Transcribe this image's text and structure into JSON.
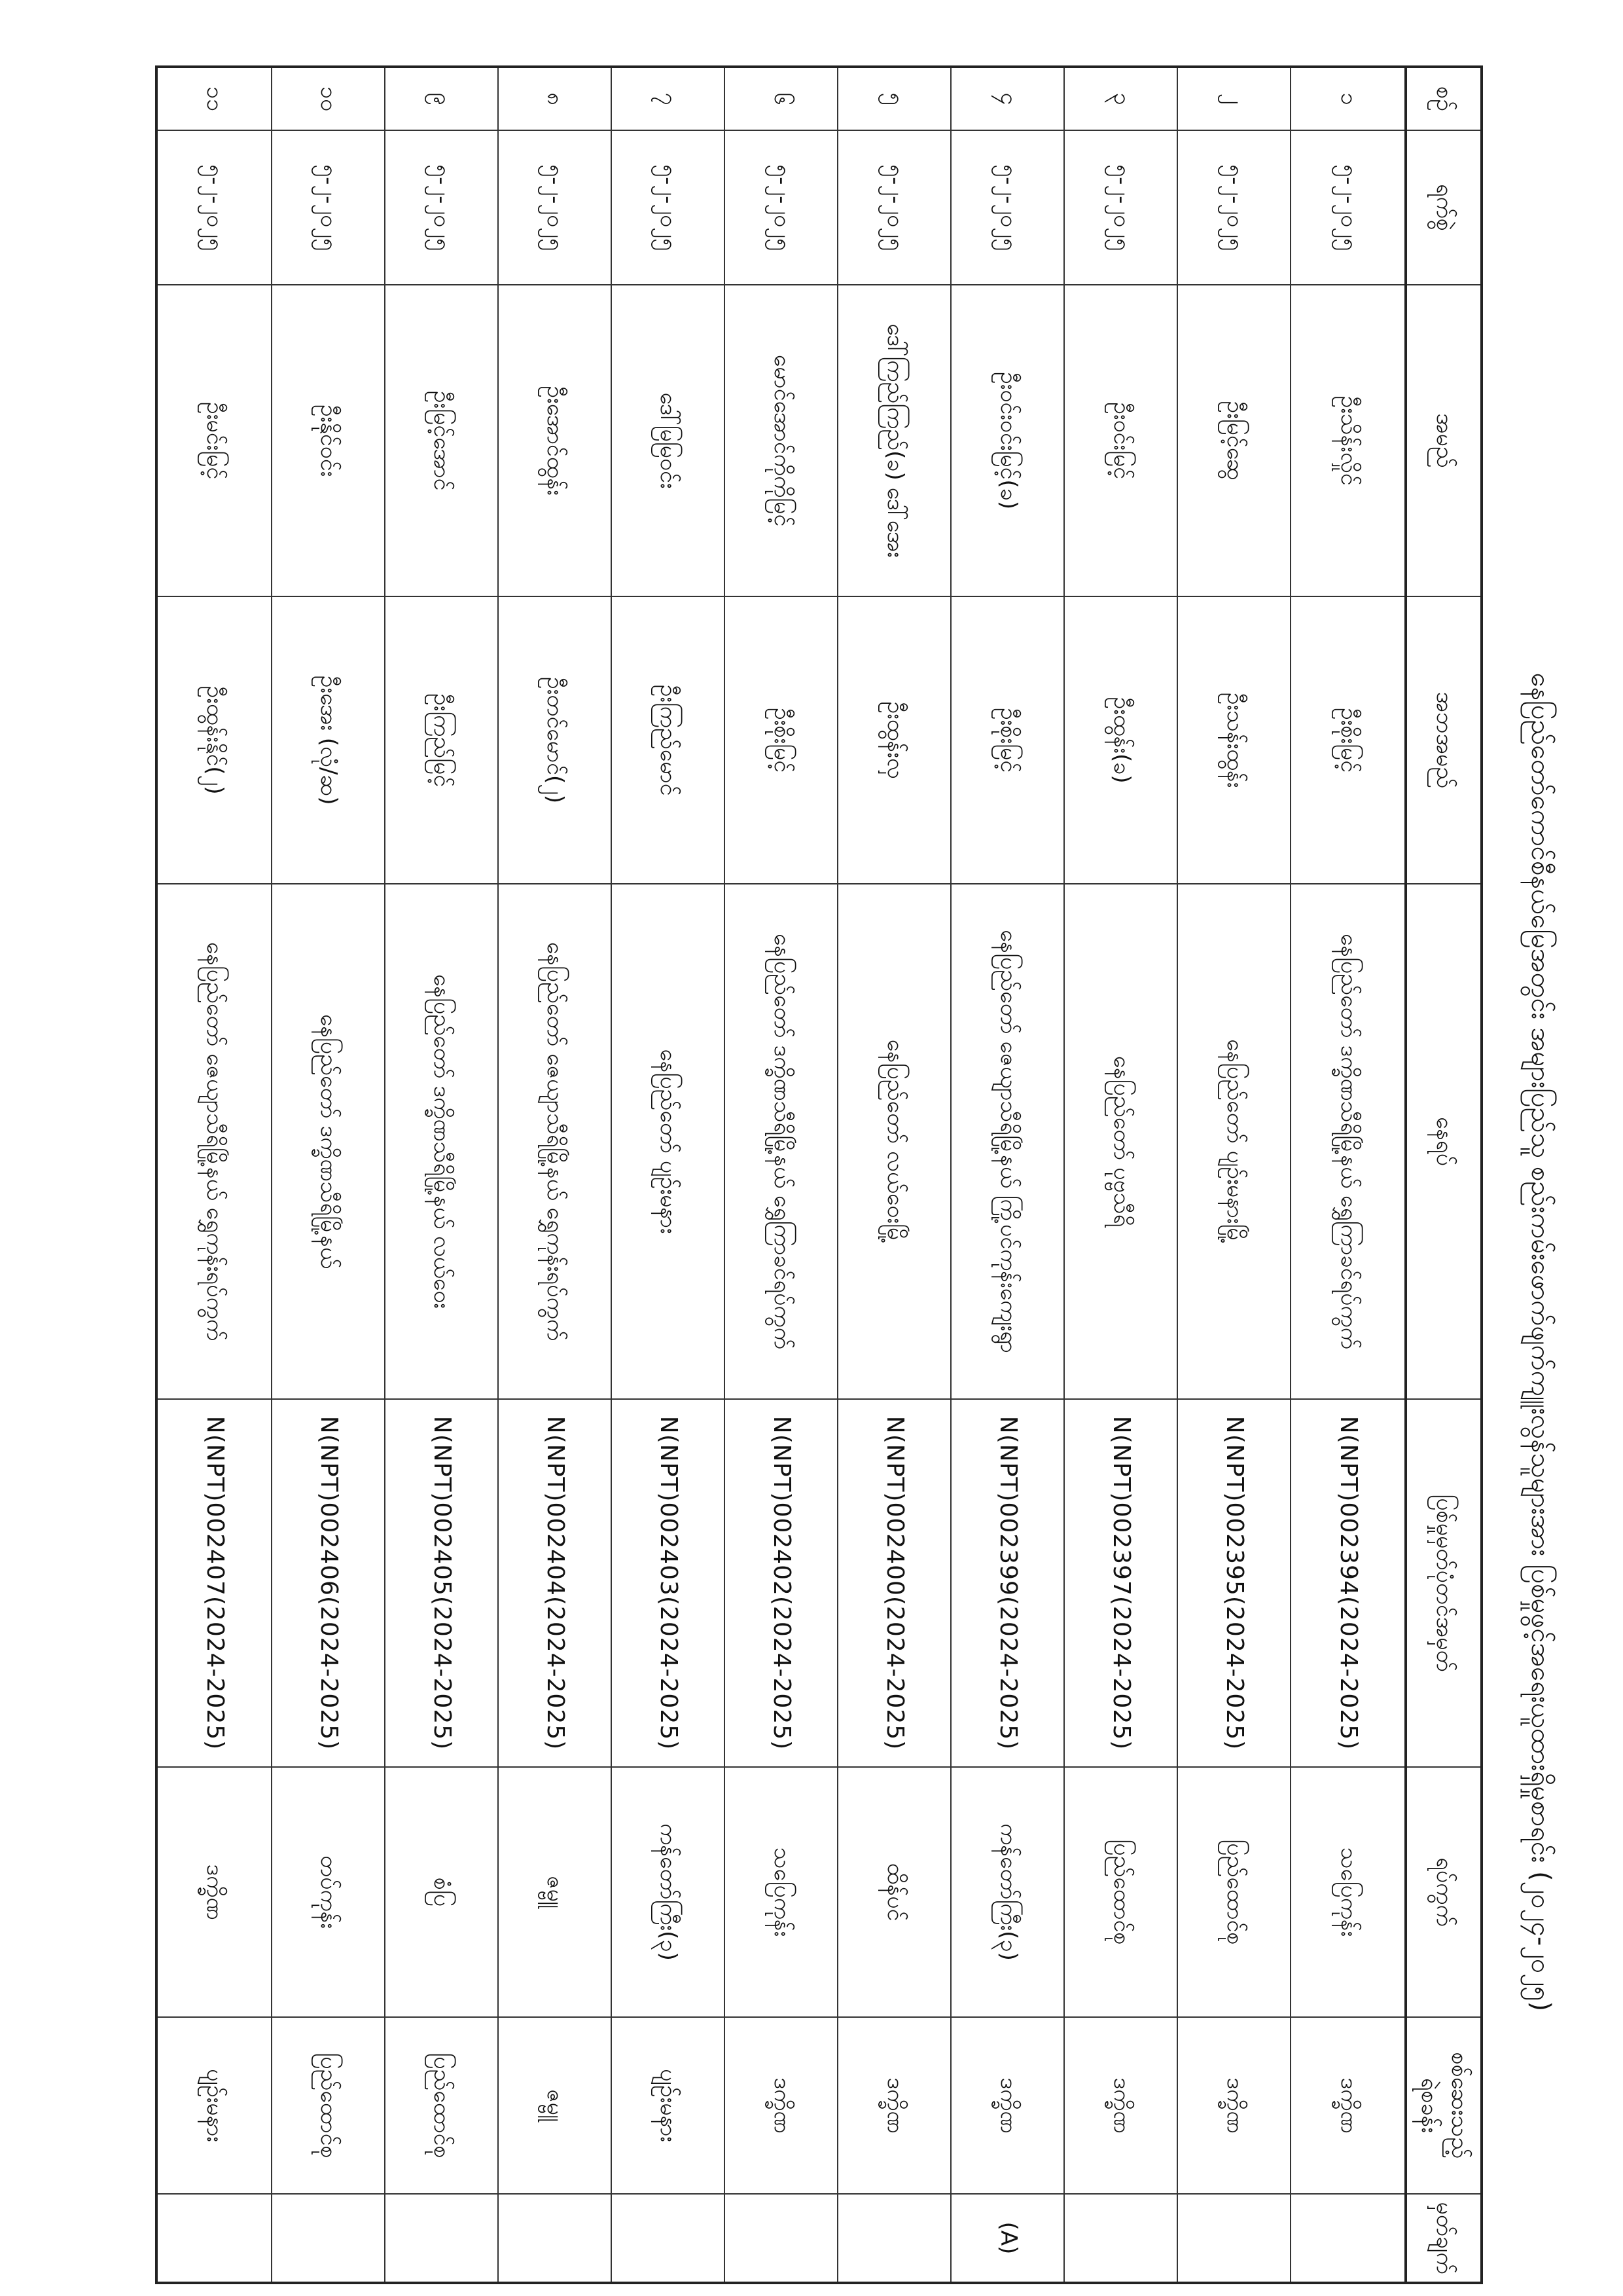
{
  "title": "နေပြည်တော်ကောင်စီနယ်မြေအတွင်း အများပြည်သူ စည်းကမ်းဖောက်ဖျက်ကျူးလွန်သူများအား ပြစ်မှုဖွင့်အရေးယူထားရှိမှုစာရင်း (၂၀၂၄-၂၀၂၅)",
  "headers": {
    "no": "စဉ်",
    "date": "ရက်စွဲ",
    "name": "အမည်",
    "father": "အဘအမည်",
    "address": "နေရပ်",
    "case_no": "ပြစ်မှုမှတ်ပုံတင်အမှတ်",
    "township": "ရပ်ကွက်",
    "station": "စစ်ဆေးသည့် ရဲစခန်း",
    "remark": "မှတ်ချက်"
  },
  "rows": [
    {
      "no": "၁",
      "date": "၅-၂-၂၀၂၅",
      "name": "ဦးသိန်းလှိုင်",
      "father": "ဦးစိုးမြင့်",
      "address": "နေပြည်တော် ဒက္ခိဏသီရိမြို့နယ် ရွှေကြာခင်ရပ်ကွက်",
      "case_no": "N(NPT)002394(2024-2025)",
      "township": "သပြေကုန်း",
      "station": "ဒက္ခိဏ",
      "remark": ""
    },
    {
      "no": "၂",
      "date": "၅-၂-၂၀၂၅",
      "name": "ဦးမြင့်ဆွေ",
      "father": "ဦးသန်းထွန်း",
      "address": "နေပြည်တော် ပျဉ်းမနားမြို့",
      "case_no": "N(NPT)002395(2024-2025)",
      "township": "ပြည်ထောင်စု",
      "station": "ဒက္ခိဏ",
      "remark": ""
    },
    {
      "no": "၃",
      "date": "၅-၂-၂၀၂၅",
      "name": "ဦးဝင်းမြင့်",
      "father": "ဦးထွန်း(ခ)",
      "address": "နေပြည်တော် ပုဗ္ဗသီရိ",
      "case_no": "N(NPT)002397(2024-2025)",
      "township": "ပြည်ထောင်စု",
      "station": "ဒက္ခိဏ",
      "remark": ""
    },
    {
      "no": "၄",
      "date": "၅-၂-၂၀၂၅",
      "name": "ဦးဝင်းဝင်းမြင့်(ခ)",
      "father": "ဦးစိုးမြင့်",
      "address": "နေပြည်တော် ဇေယျာသီရိမြို့နယ် ကြို့ပင်ကုန်းကျေးရွာ",
      "case_no": "N(NPT)002399(2024-2025)",
      "township": "ကန်တော်ကြီး(၃)",
      "station": "ဒက္ခိဏ",
      "remark": "(A)"
    },
    {
      "no": "၅",
      "date": "၅-၂-၂၀၂၅",
      "name": "ဒေါ်ကြည်ကြည်(ခ) ဒေါ်အေး",
      "father": "ဦးထွန်းလှ",
      "address": "နေပြည်တော် လယ်ဝေးမြို့",
      "case_no": "N(NPT)002400(2024-2025)",
      "township": "ထိန်ပင်",
      "station": "ဒက္ခိဏ",
      "remark": ""
    },
    {
      "no": "၆",
      "date": "၅-၂-၂၀၂၅",
      "name": "မောင်အောင်ကိုကိုမြင့်",
      "father": "ဦးစိုးမြင့်",
      "address": "နေပြည်တော် ဒက္ခိဏသီရိမြို့နယ် ရွှေကြာခင်ရပ်ကွက်",
      "case_no": "N(NPT)002402(2024-2025)",
      "township": "သပြေကုန်း",
      "station": "ဒက္ခိဏ",
      "remark": ""
    },
    {
      "no": "၇",
      "date": "၅-၂-၂၀၂၅",
      "name": "ဒေါ်မြမြဝင်း",
      "father": "ဦးကြည်မောင်",
      "address": "နေပြည်တော် ပျဉ်းမနား",
      "case_no": "N(NPT)002403(2024-2025)",
      "township": "ကန်တော်ကြီး(၃)",
      "station": "ပျဉ်းမနား",
      "remark": ""
    },
    {
      "no": "၈",
      "date": "၅-၂-၂၀၂၅",
      "name": "ဦးအောင်ထွန်း",
      "father": "ဦးတင်မောင်(၂)",
      "address": "နေပြည်တော် ဇေယျာသီရိမြို့နယ် ရွှေကုန်းရပ်ကွက်",
      "case_no": "N(NPT)002404(2024-2025)",
      "township": "ဇမ္ဗူ",
      "station": "ဇမ္ဗူ",
      "remark": ""
    },
    {
      "no": "၉",
      "date": "၅-၂-၂၀၂၅",
      "name": "ဦးမြင့်အောင်",
      "father": "ဦးကြည်မြင့်",
      "address": "နေပြည်တော် ဒက္ခိဏသီရိမြို့နယ် လယ်ဝေး",
      "case_no": "N(NPT)002405(2024-2025)",
      "township": "စံပြ",
      "station": "ပြည်ထောင်စု",
      "remark": ""
    },
    {
      "no": "၁၀",
      "date": "၅-၂-၂၀၂၅",
      "name": "ဦးနိုင်ဝင်း",
      "father": "ဦးအေး (လုံ/ဆ)",
      "address": "နေပြည်တော် ဒက္ခိဏသီရိမြို့နယ်",
      "case_no": "N(NPT)002406(2024-2025)",
      "township": "တပ်ကုန်း",
      "station": "ပြည်ထောင်စု",
      "remark": ""
    },
    {
      "no": "၁၁",
      "date": "၅-၂-၂၀၂၅",
      "name": "ဦးမင်းမြင့်",
      "father": "ဦးထွန်းနိုင်(၂)",
      "address": "နေပြည်တော် ဇေယျာသီရိမြို့နယ် ရွှေကုန်းရပ်ကွက်",
      "case_no": "N(NPT)002407(2024-2025)",
      "township": "ဒက္ခိဏ",
      "station": "ပျဉ်းမနား",
      "remark": ""
    }
  ]
}
